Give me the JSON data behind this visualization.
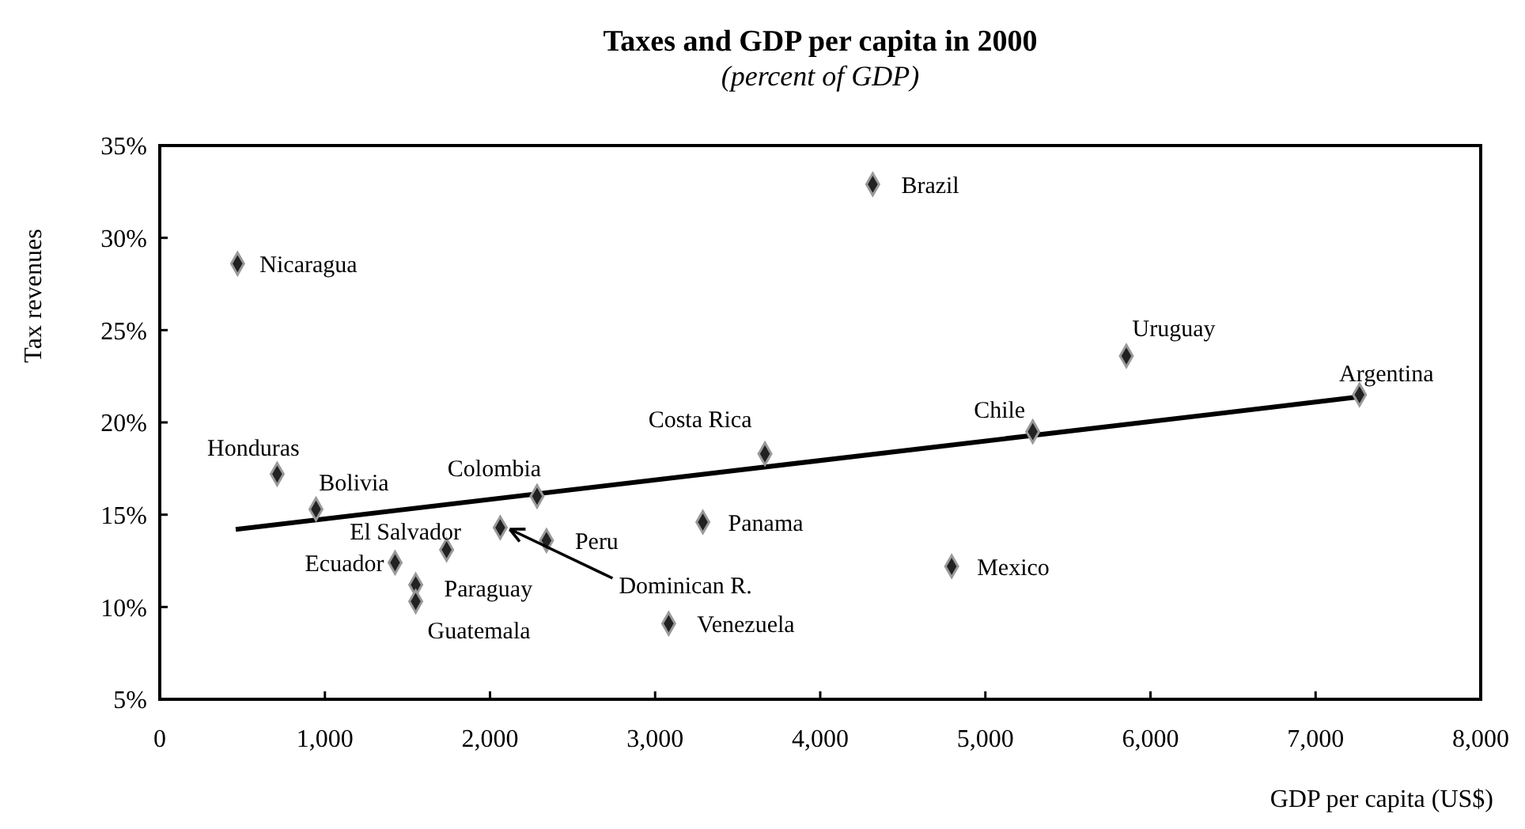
{
  "chart_data": {
    "type": "scatter",
    "title": "Taxes and GDP per capita in 2000",
    "subtitle": "(percent of GDP)",
    "xlabel": "GDP per capita (US$)",
    "ylabel": "Tax revenues",
    "xlim": [
      0,
      8000
    ],
    "xticks": [
      {
        "value": 0,
        "label": "0"
      },
      {
        "value": 1000,
        "label": "1,000"
      },
      {
        "value": 2000,
        "label": "2,000"
      },
      {
        "value": 3000,
        "label": "3,000"
      },
      {
        "value": 4000,
        "label": "4,000"
      },
      {
        "value": 5000,
        "label": "5,000"
      },
      {
        "value": 6000,
        "label": "6,000"
      },
      {
        "value": 7000,
        "label": "7,000"
      },
      {
        "value": 8000,
        "label": "8,000"
      }
    ],
    "ylim": [
      5,
      35
    ],
    "yticks": [
      {
        "value": 5,
        "label": "5%"
      },
      {
        "value": 10,
        "label": "10%"
      },
      {
        "value": 15,
        "label": "15%"
      },
      {
        "value": 20,
        "label": "20%"
      },
      {
        "value": 25,
        "label": "25%"
      },
      {
        "value": 30,
        "label": "30%"
      },
      {
        "value": 35,
        "label": "35%"
      }
    ],
    "grid": false,
    "series": [
      {
        "color": "#222222",
        "marker": "diamond",
        "x": [
          471,
          711,
          946,
          1425,
          1550,
          1550,
          1737,
          2062,
          2285,
          2342,
          3082,
          3289,
          3665,
          4318,
          4796,
          5287,
          5854,
          7266
        ],
        "values": [
          28.6,
          17.2,
          15.3,
          12.4,
          11.2,
          10.3,
          13.1,
          14.3,
          16.0,
          13.6,
          9.1,
          14.6,
          18.3,
          32.9,
          12.2,
          19.5,
          23.6,
          21.5
        ]
      },
      {
        "type": "line",
        "color": "#000000",
        "x": [
          460,
          7280
        ],
        "values": [
          14.2,
          21.4
        ],
        "marker": "none",
        "line_style": "solid"
      }
    ],
    "annotations": [
      {
        "text": "Nicaragua",
        "x": 471,
        "y": 28.6
      },
      {
        "text": "Honduras",
        "x": 711,
        "y": 17.2
      },
      {
        "text": "Bolivia",
        "x": 946,
        "y": 15.3
      },
      {
        "text": "Ecuador",
        "x": 1425,
        "y": 12.4
      },
      {
        "text": "Paraguay",
        "x": 1550,
        "y": 11.2
      },
      {
        "text": "Guatemala",
        "x": 1550,
        "y": 10.3
      },
      {
        "text": "El Salvador",
        "x": 1737,
        "y": 13.1
      },
      {
        "text": "Dominican R.",
        "x": 2062,
        "y": 14.3
      },
      {
        "text": "Colombia",
        "x": 2285,
        "y": 16.0
      },
      {
        "text": "Peru",
        "x": 2342,
        "y": 13.6
      },
      {
        "text": "Venezuela",
        "x": 3082,
        "y": 9.1
      },
      {
        "text": "Panama",
        "x": 3289,
        "y": 14.6
      },
      {
        "text": "Costa Rica",
        "x": 3665,
        "y": 18.3
      },
      {
        "text": "Brazil",
        "x": 4318,
        "y": 32.9
      },
      {
        "text": "Mexico",
        "x": 4796,
        "y": 12.2
      },
      {
        "text": "Chile",
        "x": 5287,
        "y": 19.5
      },
      {
        "text": "Uruguay",
        "x": 5854,
        "y": 23.6
      },
      {
        "text": "Argentina",
        "x": 7266,
        "y": 21.5
      }
    ]
  }
}
